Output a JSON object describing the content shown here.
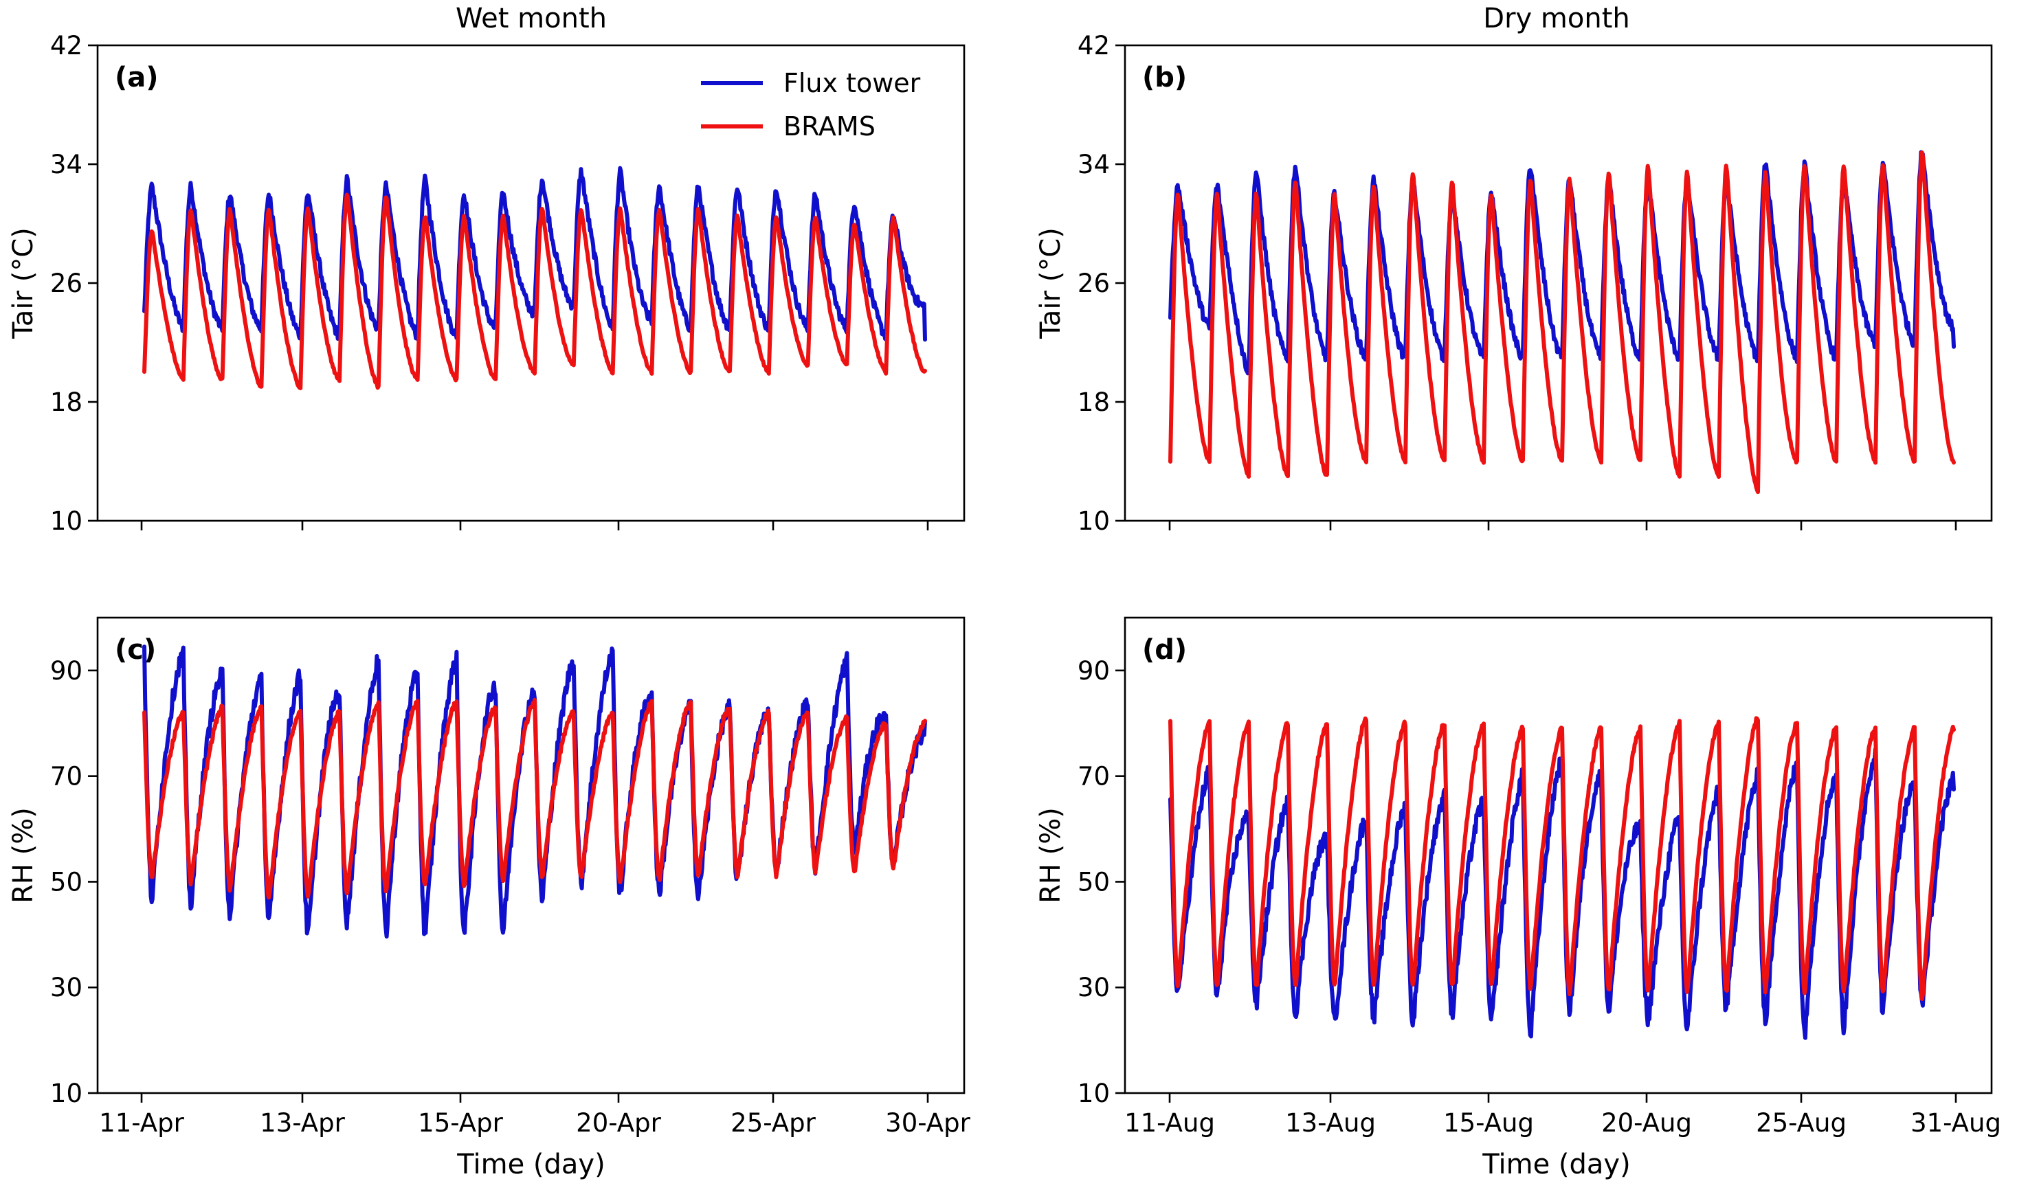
{
  "colors": {
    "flux": "#1010cc",
    "brams": "#ee1111"
  },
  "legend": {
    "flux": "Flux tower",
    "brams": "BRAMS",
    "placement": "top-right of panel (a)"
  },
  "columns": {
    "left": "Wet month",
    "right": "Dry month"
  },
  "xlabel": "Time (day)",
  "chart_data": [
    {
      "panel": "(a)",
      "type": "line",
      "ylabel": "Tair (°C)",
      "ylim": [
        10,
        42
      ],
      "yticks": [
        10,
        18,
        26,
        34,
        42
      ],
      "xticklabels": [
        "11-Apr",
        "13-Apr",
        "15-Apr",
        "20-Apr",
        "25-Apr",
        "30-Apr"
      ],
      "series": [
        {
          "name": "Flux tower",
          "var": "T",
          "cycles": 20,
          "max": [
            32.5,
            32.5,
            32,
            32,
            32,
            33,
            32.5,
            33,
            32,
            32,
            33,
            33.5,
            33.5,
            32.5,
            32.5,
            32.5,
            32.5,
            32,
            31.5,
            30.5,
            31
          ],
          "min": [
            24,
            23,
            23,
            23,
            22.5,
            22.5,
            23,
            22.5,
            22.5,
            23,
            24,
            24.5,
            23,
            23.5,
            23,
            23,
            23,
            23,
            23,
            22.5,
            24.5
          ]
        },
        {
          "name": "BRAMS",
          "var": "T",
          "cycles": 20,
          "max": [
            29.5,
            31,
            31,
            31,
            31,
            32,
            32,
            30.5,
            30.5,
            30.5,
            31,
            31,
            31,
            31,
            31,
            30.5,
            30.5,
            30.5,
            30,
            30.5,
            30
          ],
          "min": [
            20,
            19.5,
            19.5,
            19,
            19,
            19.5,
            19,
            19.5,
            19.5,
            19.5,
            20,
            20.5,
            20,
            20,
            20,
            20,
            20,
            20.5,
            20.5,
            20,
            20
          ]
        }
      ]
    },
    {
      "panel": "(b)",
      "type": "line",
      "ylabel": "Tair (°C)",
      "ylim": [
        10,
        42
      ],
      "yticks": [
        10,
        18,
        26,
        34,
        42
      ],
      "xticklabels": [
        "11-Aug",
        "13-Aug",
        "15-Aug",
        "20-Aug",
        "25-Aug",
        "31-Aug"
      ],
      "series": [
        {
          "name": "Flux tower",
          "var": "T",
          "cycles": 20,
          "max": [
            32.5,
            32.5,
            33.5,
            34,
            32,
            33,
            33,
            32,
            32,
            34,
            33,
            33,
            33,
            33,
            33,
            34,
            34,
            33,
            34,
            35,
            34
          ],
          "min": [
            24,
            23,
            20,
            21,
            21,
            21,
            21,
            21,
            21,
            21,
            21,
            21,
            21,
            21,
            21,
            21,
            21,
            21,
            22,
            22,
            23
          ]
        },
        {
          "name": "BRAMS",
          "var": "T",
          "cycles": 20,
          "max": [
            32,
            32,
            32,
            33,
            32,
            32.5,
            33.5,
            33,
            32,
            33,
            33,
            33.5,
            34,
            33.5,
            34,
            33.5,
            34,
            34,
            34,
            35,
            34
          ],
          "min": [
            14,
            14,
            13,
            13,
            13,
            14,
            14,
            14,
            14,
            14,
            14,
            14,
            14,
            13,
            13,
            12,
            14,
            14,
            14,
            14,
            14
          ]
        }
      ]
    },
    {
      "panel": "(c)",
      "type": "line",
      "ylabel": "RH (%)",
      "ylim": [
        10,
        100
      ],
      "yticks": [
        10,
        30,
        50,
        70,
        90
      ],
      "xticklabels": [
        "11-Apr",
        "13-Apr",
        "15-Apr",
        "20-Apr",
        "25-Apr",
        "30-Apr"
      ],
      "series": [
        {
          "name": "Flux tower",
          "var": "RH",
          "cycles": 20,
          "max": [
            93,
            93,
            89,
            88,
            89,
            86,
            92,
            89,
            92,
            87,
            86,
            92,
            93,
            85,
            83,
            83,
            82,
            84,
            92,
            81,
            78
          ],
          "min": [
            47,
            46,
            44,
            43,
            39,
            43,
            40,
            40,
            40,
            39,
            46,
            50,
            47,
            48,
            46,
            50,
            52,
            52,
            56,
            53,
            54
          ]
        },
        {
          "name": "BRAMS",
          "var": "RH",
          "cycles": 20,
          "max": [
            82,
            82,
            83,
            83,
            82,
            82,
            84,
            84,
            84,
            83,
            84,
            82,
            82,
            84,
            84,
            83,
            82,
            82,
            81,
            80,
            80
          ],
          "min": [
            51,
            50,
            49,
            47,
            47,
            48,
            48,
            49,
            49,
            50,
            51,
            51,
            50,
            50,
            51,
            51,
            51,
            52,
            52,
            52,
            55
          ]
        }
      ]
    },
    {
      "panel": "(d)",
      "type": "line",
      "ylabel": "RH (%)",
      "ylim": [
        10,
        100
      ],
      "yticks": [
        10,
        30,
        50,
        70,
        90
      ],
      "xticklabels": [
        "11-Aug",
        "13-Aug",
        "15-Aug",
        "20-Aug",
        "25-Aug",
        "31-Aug"
      ],
      "series": [
        {
          "name": "Flux tower",
          "var": "RH",
          "cycles": 20,
          "max": [
            65,
            71,
            62,
            65,
            58,
            62,
            64,
            66,
            65,
            70,
            73,
            70,
            60,
            62,
            67,
            70,
            72,
            70,
            74,
            68,
            70
          ],
          "min": [
            29,
            28,
            27,
            25,
            23,
            24,
            23,
            25,
            24,
            20,
            25,
            26,
            24,
            21,
            26,
            24,
            21,
            22,
            25,
            27,
            27
          ]
        },
        {
          "name": "BRAMS",
          "var": "RH",
          "cycles": 20,
          "max": [
            80,
            80,
            80,
            80,
            80,
            81,
            80,
            80,
            80,
            79,
            79,
            79,
            79,
            80,
            80,
            81,
            80,
            79,
            79,
            79,
            79
          ],
          "min": [
            30,
            30,
            30,
            30,
            30,
            30,
            30,
            30,
            30,
            30,
            29,
            29,
            29,
            29,
            29,
            29,
            29,
            29,
            29,
            28,
            28
          ]
        }
      ]
    }
  ]
}
